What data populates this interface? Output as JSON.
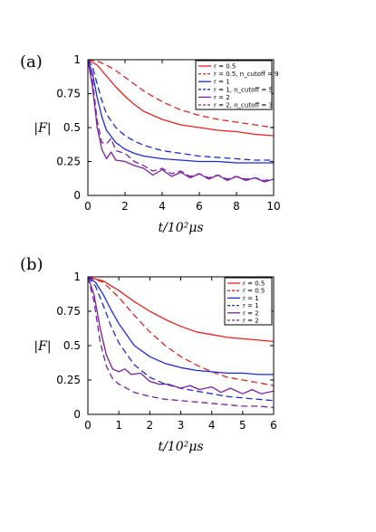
{
  "chart_data": [
    {
      "panel_label": "(a)",
      "type": "line",
      "xlabel": "t/10²μs",
      "ylabel": "|F|",
      "xlim": [
        0,
        10
      ],
      "ylim": [
        0,
        1
      ],
      "xticks": [
        "0",
        "2",
        "4",
        "6",
        "8",
        "10"
      ],
      "yticks": [
        "0",
        "0.25",
        "0.5",
        "0.75",
        "1"
      ],
      "legend_position": "top-right",
      "series": [
        {
          "name": "r = 0.5",
          "color": "#e8211d",
          "dash": "solid",
          "x": [
            0,
            0.5,
            1,
            1.5,
            2,
            2.5,
            3,
            4,
            5,
            6,
            7,
            8,
            9,
            10
          ],
          "y": [
            1,
            0.96,
            0.88,
            0.8,
            0.73,
            0.67,
            0.62,
            0.56,
            0.52,
            0.5,
            0.48,
            0.47,
            0.45,
            0.44
          ]
        },
        {
          "name": "r = 0.5, n_cutoff = 9",
          "color": "#e8211d",
          "dash": "dashed",
          "x": [
            0,
            0.5,
            1,
            1.5,
            2,
            2.5,
            3,
            4,
            5,
            6,
            7,
            8,
            9,
            10
          ],
          "y": [
            1,
            0.99,
            0.96,
            0.92,
            0.87,
            0.82,
            0.77,
            0.69,
            0.63,
            0.59,
            0.56,
            0.54,
            0.52,
            0.5
          ]
        },
        {
          "name": "r = 1",
          "color": "#1a2ad6",
          "dash": "solid",
          "x": [
            0,
            0.25,
            0.5,
            0.75,
            1,
            1.5,
            2,
            2.5,
            3,
            4,
            5,
            6,
            7,
            8,
            9,
            10
          ],
          "y": [
            1,
            0.9,
            0.72,
            0.58,
            0.48,
            0.39,
            0.34,
            0.31,
            0.29,
            0.27,
            0.26,
            0.25,
            0.25,
            0.24,
            0.24,
            0.24
          ]
        },
        {
          "name": "r = 1, n_cutoff = 5",
          "color": "#1a2ad6",
          "dash": "dashed",
          "x": [
            0,
            0.25,
            0.5,
            0.75,
            1,
            1.5,
            2,
            2.5,
            3,
            4,
            5,
            6,
            7,
            8,
            9,
            10
          ],
          "y": [
            1,
            0.95,
            0.82,
            0.7,
            0.6,
            0.5,
            0.44,
            0.4,
            0.37,
            0.33,
            0.31,
            0.29,
            0.28,
            0.27,
            0.26,
            0.26
          ]
        },
        {
          "name": "r = 2",
          "color": "#7b1fa2",
          "dash": "solid",
          "x": [
            0,
            0.25,
            0.5,
            0.75,
            1,
            1.25,
            1.5,
            2,
            2.5,
            3,
            3.5,
            4,
            4.5,
            5,
            5.5,
            6,
            6.5,
            7,
            7.5,
            8,
            8.5,
            9,
            9.5,
            10
          ],
          "y": [
            1,
            0.8,
            0.5,
            0.34,
            0.27,
            0.32,
            0.26,
            0.25,
            0.22,
            0.2,
            0.15,
            0.19,
            0.14,
            0.17,
            0.13,
            0.16,
            0.12,
            0.15,
            0.11,
            0.14,
            0.11,
            0.13,
            0.1,
            0.12
          ]
        },
        {
          "name": "r = 2, n_cutoff = 3",
          "color": "#7b1fa2",
          "dash": "dashed",
          "x": [
            0,
            0.25,
            0.5,
            0.75,
            1,
            1.25,
            1.5,
            2,
            2.5,
            3,
            3.5,
            4,
            4.5,
            5,
            5.5,
            6,
            6.5,
            7,
            7.5,
            8,
            8.5,
            9,
            9.5,
            10
          ],
          "y": [
            1,
            0.85,
            0.55,
            0.39,
            0.38,
            0.42,
            0.33,
            0.31,
            0.25,
            0.22,
            0.18,
            0.2,
            0.16,
            0.18,
            0.14,
            0.16,
            0.13,
            0.15,
            0.12,
            0.14,
            0.12,
            0.13,
            0.11,
            0.12
          ]
        }
      ]
    },
    {
      "panel_label": "(b)",
      "type": "line",
      "xlabel": "t/10²μs",
      "ylabel": "|F|",
      "xlim": [
        0,
        6
      ],
      "ylim": [
        0,
        1
      ],
      "xticks": [
        "0",
        "1",
        "2",
        "3",
        "4",
        "5",
        "6"
      ],
      "yticks": [
        "0",
        "0.25",
        "0.5",
        "0.75",
        "1"
      ],
      "legend_position": "top-right",
      "series": [
        {
          "name": "r = 0.5",
          "color": "#e8211d",
          "dash": "solid",
          "x": [
            0,
            0.5,
            1,
            1.5,
            2,
            2.5,
            3,
            3.5,
            4,
            4.5,
            5,
            5.5,
            6
          ],
          "y": [
            1,
            0.97,
            0.9,
            0.82,
            0.75,
            0.69,
            0.64,
            0.6,
            0.58,
            0.56,
            0.55,
            0.54,
            0.53
          ]
        },
        {
          "name": "r = 0.5",
          "color": "#e8211d",
          "dash": "dashed",
          "x": [
            0,
            0.5,
            1,
            1.5,
            2,
            2.5,
            3,
            3.5,
            4,
            4.5,
            5,
            5.5,
            6
          ],
          "y": [
            1,
            0.96,
            0.85,
            0.72,
            0.6,
            0.5,
            0.42,
            0.36,
            0.31,
            0.27,
            0.25,
            0.23,
            0.21
          ]
        },
        {
          "name": "r = 1",
          "color": "#1a2ad6",
          "dash": "solid",
          "x": [
            0,
            0.25,
            0.5,
            0.75,
            1,
            1.5,
            2,
            2.5,
            3,
            3.5,
            4,
            4.5,
            5,
            5.5,
            6
          ],
          "y": [
            1,
            0.96,
            0.87,
            0.76,
            0.66,
            0.5,
            0.42,
            0.37,
            0.34,
            0.32,
            0.31,
            0.3,
            0.3,
            0.29,
            0.29
          ]
        },
        {
          "name": "r = 1",
          "color": "#1a2ad6",
          "dash": "dashed",
          "x": [
            0,
            0.25,
            0.5,
            0.75,
            1,
            1.5,
            2,
            2.5,
            3,
            3.5,
            4,
            4.5,
            5,
            5.5,
            6
          ],
          "y": [
            1,
            0.93,
            0.79,
            0.64,
            0.52,
            0.36,
            0.27,
            0.22,
            0.19,
            0.17,
            0.15,
            0.13,
            0.12,
            0.11,
            0.1
          ]
        },
        {
          "name": "r = 2",
          "color": "#7b1fa2",
          "dash": "solid",
          "x": [
            0,
            0.2,
            0.4,
            0.6,
            0.8,
            1,
            1.2,
            1.4,
            1.7,
            2,
            2.3,
            2.6,
            3,
            3.3,
            3.6,
            4,
            4.3,
            4.6,
            5,
            5.3,
            5.6,
            6
          ],
          "y": [
            1,
            0.87,
            0.62,
            0.43,
            0.33,
            0.31,
            0.33,
            0.29,
            0.3,
            0.24,
            0.22,
            0.22,
            0.19,
            0.21,
            0.18,
            0.2,
            0.16,
            0.19,
            0.15,
            0.18,
            0.15,
            0.17
          ]
        },
        {
          "name": "r = 2",
          "color": "#7b1fa2",
          "dash": "dashed",
          "x": [
            0,
            0.2,
            0.4,
            0.6,
            0.8,
            1,
            1.25,
            1.5,
            2,
            2.5,
            3,
            3.5,
            4,
            4.5,
            5,
            5.5,
            6
          ],
          "y": [
            1,
            0.82,
            0.52,
            0.35,
            0.26,
            0.22,
            0.19,
            0.16,
            0.13,
            0.11,
            0.1,
            0.09,
            0.08,
            0.07,
            0.06,
            0.06,
            0.05
          ]
        }
      ]
    }
  ]
}
